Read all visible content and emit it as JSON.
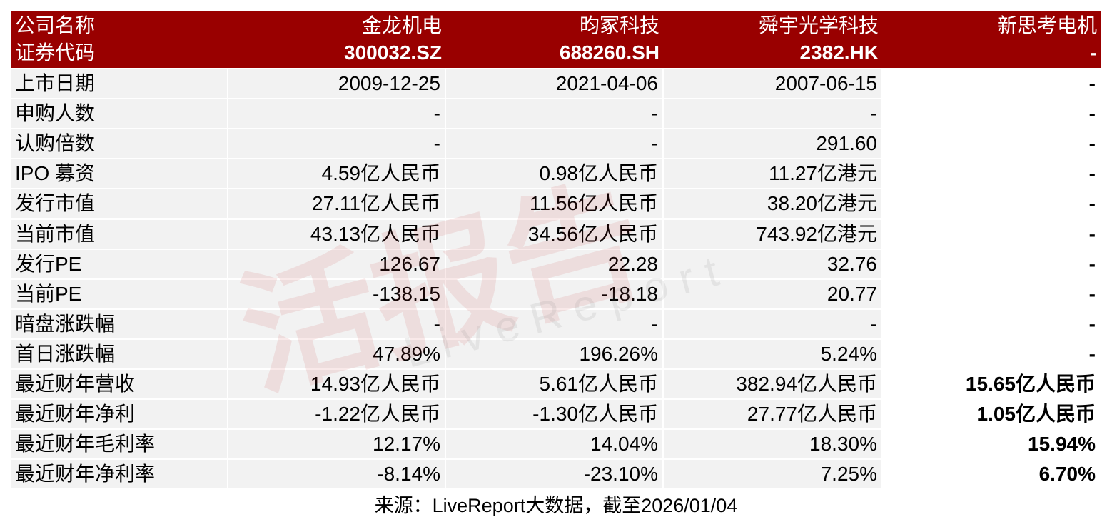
{
  "header": {
    "names": [
      "公司名称",
      "金龙机电",
      "昀冢科技",
      "舜宇光学科技",
      "新思考电机"
    ],
    "codes": [
      "证券代码",
      "300032.SZ",
      "688260.SH",
      "2382.HK",
      "-"
    ]
  },
  "table": {
    "rows": [
      [
        "上市日期",
        "2009-12-25",
        "2021-04-06",
        "2007-06-15",
        "-"
      ],
      [
        "申购人数",
        "-",
        "-",
        "-",
        "-"
      ],
      [
        "认购倍数",
        "-",
        "-",
        "291.60",
        "-"
      ],
      [
        "IPO 募资",
        "4.59亿人民币",
        "0.98亿人民币",
        "11.27亿港元",
        "-"
      ],
      [
        "发行市值",
        "27.11亿人民币",
        "11.56亿人民币",
        "38.20亿港元",
        "-"
      ],
      [
        "当前市值",
        "43.13亿人民币",
        "34.56亿人民币",
        "743.92亿港元",
        "-"
      ],
      [
        "发行PE",
        "126.67",
        "22.28",
        "32.76",
        "-"
      ],
      [
        "当前PE",
        "-138.15",
        "-18.18",
        "20.77",
        "-"
      ],
      [
        "暗盘涨跌幅",
        "-",
        "-",
        "-",
        "-"
      ],
      [
        "首日涨跌幅",
        "47.89%",
        "196.26%",
        "5.24%",
        "-"
      ],
      [
        "最近财年营收",
        "14.93亿人民币",
        "5.61亿人民币",
        "382.94亿人民币",
        "15.65亿人民币"
      ],
      [
        "最近财年净利",
        "-1.22亿人民币",
        "-1.30亿人民币",
        "27.77亿人民币",
        "1.05亿人民币"
      ],
      [
        "最近财年毛利率",
        "12.17%",
        "14.04%",
        "18.30%",
        "15.94%"
      ],
      [
        "最近财年净利率",
        "-8.14%",
        "-23.10%",
        "7.25%",
        "6.70%"
      ]
    ]
  },
  "watermark": {
    "cn": "活报告",
    "en": "LiveReport"
  },
  "source": "来源：LiveReport大数据，截至2026/01/04"
}
